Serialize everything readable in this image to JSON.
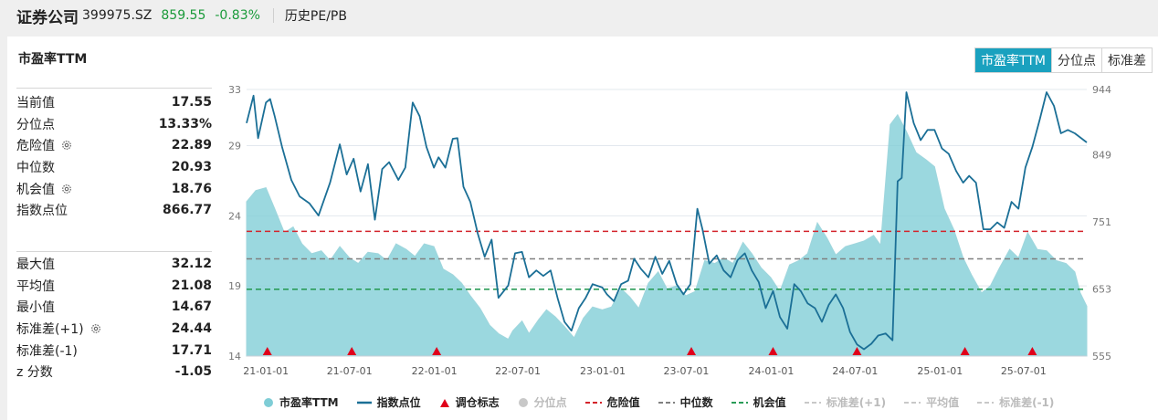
{
  "header": {
    "name": "证券公司",
    "code": "399975.SZ",
    "price": "859.55",
    "change": "-0.83%",
    "section": "历史PE/PB"
  },
  "panel": {
    "title": "市盈率TTM",
    "tabs": [
      "市盈率TTM",
      "分位点",
      "标准差"
    ],
    "active_tab": 0
  },
  "stats_top": [
    {
      "label": "当前值",
      "value": "17.55",
      "gear": false
    },
    {
      "label": "分位点",
      "value": "13.33%",
      "gear": false
    },
    {
      "label": "危险值",
      "value": "22.89",
      "gear": true
    },
    {
      "label": "中位数",
      "value": "20.93",
      "gear": false
    },
    {
      "label": "机会值",
      "value": "18.76",
      "gear": true
    },
    {
      "label": "指数点位",
      "value": "866.77",
      "gear": false
    }
  ],
  "stats_bottom": [
    {
      "label": "最大值",
      "value": "32.12",
      "gear": false
    },
    {
      "label": "平均值",
      "value": "21.08",
      "gear": false
    },
    {
      "label": "最小值",
      "value": "14.67",
      "gear": false
    },
    {
      "label": "标准差(+1)",
      "value": "24.44",
      "gear": true
    },
    {
      "label": "标准差(-1)",
      "value": "17.71",
      "gear": false
    },
    {
      "label": "z 分数",
      "value": "-1.05",
      "gear": false
    }
  ],
  "legend": [
    {
      "label": "市盈率TTM",
      "kind": "dot",
      "color": "#7fcdd6",
      "on": true
    },
    {
      "label": "指数点位",
      "kind": "line",
      "color": "#1b6f96",
      "on": true
    },
    {
      "label": "调仓标志",
      "kind": "triangle",
      "color": "#e0001b",
      "on": true
    },
    {
      "label": "分位点",
      "kind": "dot",
      "color": "#c8c8c8",
      "on": false
    },
    {
      "label": "危险值",
      "kind": "dash",
      "color": "#d4232b",
      "on": true
    },
    {
      "label": "中位数",
      "kind": "dash",
      "color": "#808080",
      "on": true
    },
    {
      "label": "机会值",
      "kind": "dash",
      "color": "#2a9c58",
      "on": true
    },
    {
      "label": "标准差(+1)",
      "kind": "dash",
      "color": "#c8c8c8",
      "on": false
    },
    {
      "label": "平均值",
      "kind": "dash",
      "color": "#c8c8c8",
      "on": false
    },
    {
      "label": "标准差(-1)",
      "kind": "dash",
      "color": "#c8c8c8",
      "on": false
    }
  ],
  "chart_data": {
    "type": "area",
    "x_ticks": [
      "21-01-01",
      "21-07-01",
      "22-01-01",
      "22-07-01",
      "23-01-01",
      "23-07-01",
      "24-01-01",
      "24-07-01",
      "25-01-01",
      "25-07-01"
    ],
    "x_range": [
      "2020-11-20",
      "2025-11-15"
    ],
    "y_left": {
      "ticks": [
        14,
        19,
        24,
        29,
        33
      ],
      "range": [
        14,
        33
      ]
    },
    "y_right": {
      "ticks": [
        555,
        653,
        751,
        849,
        944
      ],
      "range": [
        555,
        944
      ]
    },
    "reference_lines": {
      "danger": 22.89,
      "median": 20.93,
      "opportunity": 18.76
    },
    "series": [
      {
        "name": "市盈率TTM",
        "axis": "left",
        "color": "#7fcdd6",
        "points": [
          [
            "2020-11-20",
            25.0
          ],
          [
            "2020-12-10",
            25.8
          ],
          [
            "2021-01-01",
            26.0
          ],
          [
            "2021-01-20",
            24.5
          ],
          [
            "2021-02-10",
            22.8
          ],
          [
            "2021-03-01",
            23.2
          ],
          [
            "2021-03-20",
            22.0
          ],
          [
            "2021-04-10",
            21.3
          ],
          [
            "2021-05-01",
            21.5
          ],
          [
            "2021-05-20",
            20.8
          ],
          [
            "2021-06-10",
            21.8
          ],
          [
            "2021-07-01",
            21.0
          ],
          [
            "2021-07-20",
            20.6
          ],
          [
            "2021-08-10",
            21.4
          ],
          [
            "2021-09-01",
            21.3
          ],
          [
            "2021-09-20",
            20.8
          ],
          [
            "2021-10-10",
            22.0
          ],
          [
            "2021-11-01",
            21.6
          ],
          [
            "2021-11-20",
            21.1
          ],
          [
            "2021-12-10",
            22.0
          ],
          [
            "2021-12-31",
            21.8
          ],
          [
            "2022-01-20",
            20.2
          ],
          [
            "2022-02-10",
            19.8
          ],
          [
            "2022-03-01",
            19.2
          ],
          [
            "2022-03-20",
            18.3
          ],
          [
            "2022-04-10",
            17.4
          ],
          [
            "2022-05-01",
            16.2
          ],
          [
            "2022-05-20",
            15.6
          ],
          [
            "2022-06-10",
            15.2
          ],
          [
            "2022-06-20",
            15.8
          ],
          [
            "2022-07-10",
            16.5
          ],
          [
            "2022-07-25",
            15.6
          ],
          [
            "2022-08-15",
            16.6
          ],
          [
            "2022-09-01",
            17.3
          ],
          [
            "2022-09-20",
            16.8
          ],
          [
            "2022-10-10",
            16.1
          ],
          [
            "2022-10-31",
            15.3
          ],
          [
            "2022-11-20",
            16.7
          ],
          [
            "2022-12-10",
            17.5
          ],
          [
            "2022-12-31",
            17.3
          ],
          [
            "2023-01-20",
            17.5
          ],
          [
            "2023-02-10",
            18.8
          ],
          [
            "2023-03-01",
            18.2
          ],
          [
            "2023-03-20",
            17.4
          ],
          [
            "2023-04-10",
            19.2
          ],
          [
            "2023-05-01",
            20.0
          ],
          [
            "2023-05-20",
            18.8
          ],
          [
            "2023-06-10",
            19.0
          ],
          [
            "2023-06-30",
            18.3
          ],
          [
            "2023-07-20",
            18.6
          ],
          [
            "2023-08-10",
            20.8
          ],
          [
            "2023-09-01",
            20.6
          ],
          [
            "2023-09-20",
            21.0
          ],
          [
            "2023-10-10",
            20.6
          ],
          [
            "2023-11-01",
            22.1
          ],
          [
            "2023-11-20",
            21.3
          ],
          [
            "2023-12-10",
            20.3
          ],
          [
            "2023-12-31",
            19.6
          ],
          [
            "2024-01-20",
            18.6
          ],
          [
            "2024-02-10",
            20.5
          ],
          [
            "2024-03-01",
            20.8
          ],
          [
            "2024-03-20",
            21.3
          ],
          [
            "2024-04-10",
            23.5
          ],
          [
            "2024-05-01",
            22.4
          ],
          [
            "2024-05-20",
            21.2
          ],
          [
            "2024-06-10",
            21.8
          ],
          [
            "2024-06-30",
            22.0
          ],
          [
            "2024-07-20",
            22.2
          ],
          [
            "2024-08-10",
            22.6
          ],
          [
            "2024-08-25",
            21.9
          ],
          [
            "2024-09-15",
            30.5
          ],
          [
            "2024-10-01",
            31.2
          ],
          [
            "2024-10-20",
            30.0
          ],
          [
            "2024-11-10",
            28.5
          ],
          [
            "2024-12-01",
            28.0
          ],
          [
            "2024-12-20",
            27.5
          ],
          [
            "2025-01-10",
            24.5
          ],
          [
            "2025-01-31",
            23.0
          ],
          [
            "2025-02-20",
            21.0
          ],
          [
            "2025-03-10",
            19.8
          ],
          [
            "2025-04-01",
            18.5
          ],
          [
            "2025-04-20",
            19.0
          ],
          [
            "2025-05-10",
            20.3
          ],
          [
            "2025-06-01",
            21.6
          ],
          [
            "2025-06-20",
            21.0
          ],
          [
            "2025-07-10",
            22.8
          ],
          [
            "2025-07-31",
            21.6
          ],
          [
            "2025-08-20",
            21.5
          ],
          [
            "2025-09-10",
            20.8
          ],
          [
            "2025-10-01",
            20.6
          ],
          [
            "2025-10-20",
            20.0
          ],
          [
            "2025-11-01",
            18.5
          ],
          [
            "2025-11-15",
            17.55
          ]
        ]
      },
      {
        "name": "指数点位",
        "axis": "right",
        "color": "#1b6f96",
        "points": [
          [
            "2020-11-20",
            895
          ],
          [
            "2020-12-05",
            935
          ],
          [
            "2020-12-15",
            873
          ],
          [
            "2021-01-01",
            925
          ],
          [
            "2021-01-10",
            930
          ],
          [
            "2021-01-20",
            905
          ],
          [
            "2021-02-05",
            860
          ],
          [
            "2021-02-25",
            812
          ],
          [
            "2021-03-15",
            788
          ],
          [
            "2021-04-05",
            778
          ],
          [
            "2021-04-25",
            760
          ],
          [
            "2021-05-20",
            808
          ],
          [
            "2021-06-10",
            864
          ],
          [
            "2021-06-25",
            820
          ],
          [
            "2021-07-10",
            843
          ],
          [
            "2021-07-25",
            795
          ],
          [
            "2021-08-10",
            835
          ],
          [
            "2021-08-25",
            754
          ],
          [
            "2021-09-10",
            828
          ],
          [
            "2021-09-25",
            838
          ],
          [
            "2021-10-15",
            812
          ],
          [
            "2021-10-30",
            830
          ],
          [
            "2021-11-15",
            925
          ],
          [
            "2021-11-30",
            905
          ],
          [
            "2021-12-15",
            860
          ],
          [
            "2021-12-31",
            830
          ],
          [
            "2022-01-10",
            845
          ],
          [
            "2022-01-25",
            830
          ],
          [
            "2022-02-10",
            872
          ],
          [
            "2022-02-20",
            873
          ],
          [
            "2022-03-05",
            802
          ],
          [
            "2022-03-20",
            780
          ],
          [
            "2022-04-05",
            734
          ],
          [
            "2022-04-20",
            700
          ],
          [
            "2022-05-05",
            725
          ],
          [
            "2022-05-20",
            640
          ],
          [
            "2022-06-10",
            658
          ],
          [
            "2022-06-25",
            705
          ],
          [
            "2022-07-10",
            707
          ],
          [
            "2022-07-25",
            670
          ],
          [
            "2022-08-10",
            680
          ],
          [
            "2022-08-25",
            672
          ],
          [
            "2022-09-10",
            680
          ],
          [
            "2022-09-25",
            640
          ],
          [
            "2022-10-10",
            605
          ],
          [
            "2022-10-25",
            592
          ],
          [
            "2022-11-10",
            625
          ],
          [
            "2022-11-25",
            640
          ],
          [
            "2022-12-10",
            660
          ],
          [
            "2022-12-31",
            655
          ],
          [
            "2023-01-10",
            645
          ],
          [
            "2023-01-25",
            635
          ],
          [
            "2023-02-10",
            660
          ],
          [
            "2023-02-25",
            665
          ],
          [
            "2023-03-10",
            697
          ],
          [
            "2023-03-25",
            682
          ],
          [
            "2023-04-10",
            670
          ],
          [
            "2023-04-25",
            700
          ],
          [
            "2023-05-10",
            675
          ],
          [
            "2023-05-25",
            694
          ],
          [
            "2023-06-10",
            660
          ],
          [
            "2023-06-25",
            645
          ],
          [
            "2023-07-10",
            660
          ],
          [
            "2023-07-25",
            770
          ],
          [
            "2023-08-05",
            740
          ],
          [
            "2023-08-20",
            690
          ],
          [
            "2023-09-05",
            702
          ],
          [
            "2023-09-20",
            680
          ],
          [
            "2023-10-05",
            670
          ],
          [
            "2023-10-20",
            695
          ],
          [
            "2023-11-05",
            705
          ],
          [
            "2023-11-20",
            680
          ],
          [
            "2023-12-05",
            663
          ],
          [
            "2023-12-20",
            625
          ],
          [
            "2024-01-05",
            650
          ],
          [
            "2024-01-20",
            612
          ],
          [
            "2024-02-05",
            595
          ],
          [
            "2024-02-20",
            660
          ],
          [
            "2024-03-05",
            650
          ],
          [
            "2024-03-20",
            632
          ],
          [
            "2024-04-05",
            625
          ],
          [
            "2024-04-20",
            605
          ],
          [
            "2024-05-05",
            630
          ],
          [
            "2024-05-20",
            645
          ],
          [
            "2024-06-05",
            625
          ],
          [
            "2024-06-20",
            590
          ],
          [
            "2024-07-05",
            572
          ],
          [
            "2024-07-20",
            565
          ],
          [
            "2024-08-05",
            573
          ],
          [
            "2024-08-20",
            585
          ],
          [
            "2024-09-05",
            588
          ],
          [
            "2024-09-20",
            578
          ],
          [
            "2024-10-01",
            810
          ],
          [
            "2024-10-10",
            815
          ],
          [
            "2024-10-20",
            940
          ],
          [
            "2024-11-05",
            895
          ],
          [
            "2024-11-20",
            870
          ],
          [
            "2024-12-05",
            885
          ],
          [
            "2024-12-20",
            885
          ],
          [
            "2025-01-05",
            858
          ],
          [
            "2025-01-20",
            850
          ],
          [
            "2025-02-05",
            825
          ],
          [
            "2025-02-20",
            808
          ],
          [
            "2025-03-05",
            818
          ],
          [
            "2025-03-20",
            808
          ],
          [
            "2025-04-05",
            740
          ],
          [
            "2025-04-20",
            740
          ],
          [
            "2025-05-05",
            750
          ],
          [
            "2025-05-20",
            742
          ],
          [
            "2025-06-05",
            780
          ],
          [
            "2025-06-20",
            770
          ],
          [
            "2025-07-05",
            830
          ],
          [
            "2025-07-20",
            860
          ],
          [
            "2025-08-05",
            900
          ],
          [
            "2025-08-20",
            940
          ],
          [
            "2025-09-05",
            920
          ],
          [
            "2025-09-20",
            880
          ],
          [
            "2025-10-05",
            885
          ],
          [
            "2025-10-20",
            880
          ],
          [
            "2025-11-15",
            866.77
          ]
        ]
      }
    ],
    "markers": [
      "2021-01-04",
      "2021-07-06",
      "2022-01-06",
      "2023-07-12",
      "2024-01-05",
      "2024-07-05",
      "2025-02-24",
      "2025-07-20"
    ]
  }
}
